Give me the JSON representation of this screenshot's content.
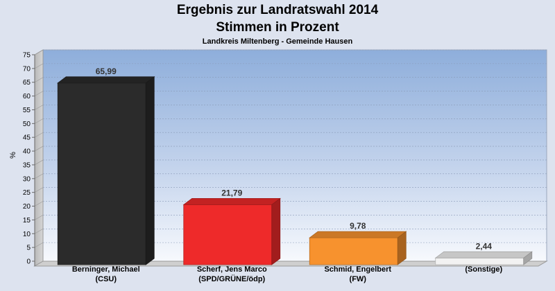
{
  "chart_data": {
    "type": "bar",
    "title": "Ergebnis zur Landratswahl 2014",
    "subtitle": "Stimmen in Prozent",
    "subsubtitle": "Landkreis Miltenberg - Gemeinde Hausen",
    "ylabel": "%",
    "ylim": [
      0,
      75
    ],
    "yticks": [
      0,
      5,
      10,
      15,
      20,
      25,
      30,
      35,
      40,
      45,
      50,
      55,
      60,
      65,
      70,
      75
    ],
    "categories": [
      [
        "Berninger, Michael",
        "(CSU)"
      ],
      [
        "Scherf, Jens Marco",
        "(SPD/GRÜNE/ödp)"
      ],
      [
        "Schmid, Engelbert",
        "(FW)"
      ],
      [
        "(Sonstige)",
        ""
      ]
    ],
    "values": [
      65.99,
      21.79,
      9.78,
      2.44
    ],
    "value_labels": [
      "65,99",
      "21,79",
      "9,78",
      "2,44"
    ],
    "colors": [
      "#2b2b2b",
      "#ee2a2a",
      "#f7922e",
      "#f2f2f2"
    ],
    "grid": true,
    "legend": "none"
  }
}
